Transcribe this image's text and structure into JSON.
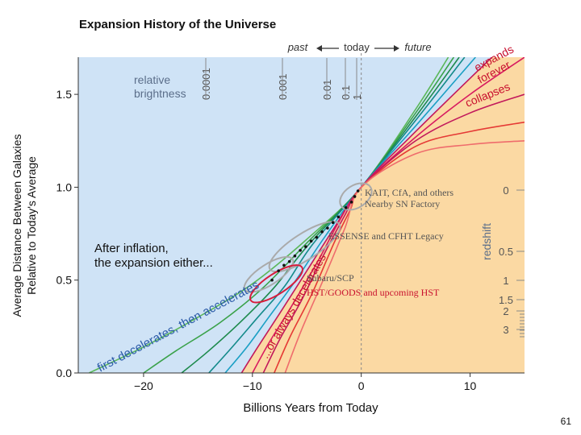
{
  "page": {
    "number": "61"
  },
  "chart_data": {
    "type": "line",
    "title": "Expansion History of the Universe",
    "xlabel": "Billions Years from Today",
    "ylabel_line1": "Average Distance Between Galaxies",
    "ylabel_line2": "Relative to Today's Average",
    "xlim": [
      -26,
      15
    ],
    "ylim": [
      0,
      1.7
    ],
    "x_ticks": [
      -20,
      -10,
      0,
      10
    ],
    "x_tick_labels": [
      "−20",
      "−10",
      "0",
      "10"
    ],
    "y_ticks": [
      0.0,
      0.5,
      1.0,
      1.5
    ],
    "y_tick_labels": [
      "0.0",
      "0.5",
      "1.0",
      "1.5"
    ],
    "colors": {
      "decel_region": "#cfe3f6",
      "accel_region": "#fbd9a3",
      "today_line": "#888888",
      "decel_text": "#2a5aa8",
      "accel_text": "#c8102e",
      "gray_text": "#555555"
    },
    "time_arrow": {
      "past": "past",
      "today": "today",
      "future": "future"
    },
    "brightness": {
      "label_line1": "relative",
      "label_line2": "brightness",
      "ticks": [
        "0.0001",
        "0.001",
        "0.01",
        "0.1",
        "1"
      ]
    },
    "redshift": {
      "label": "redshift",
      "ticks": [
        "0",
        "0.5",
        "1",
        "1.5",
        "2",
        "3"
      ]
    },
    "annotations": {
      "expands": "expands",
      "forever": "forever",
      "collapses": "collapses",
      "first_decelerates": "first decelerates, then accelerates",
      "always_decelerates": "...or always decelerates",
      "after_inflation_line1": "After inflation,",
      "after_inflation_line2": "the expansion either...",
      "kait": "KAIT, CfA, and others",
      "nearby": "Nearby SN Factory",
      "essence": "ESSENSE and CFHT Legacy",
      "subaru": "Subaru/SCP",
      "hst": "HST/GOODS and upcoming HST"
    },
    "series": [
      {
        "name": "accelerating model 1",
        "color": "#5bb85a",
        "values": [
          [
            -25.0,
            0
          ],
          [
            -20,
            0.14
          ],
          [
            -15,
            0.3
          ],
          [
            -10,
            0.48
          ],
          [
            -5,
            0.72
          ],
          [
            0,
            1.0
          ],
          [
            5,
            1.42
          ],
          [
            8,
            1.7
          ]
        ]
      },
      {
        "name": "accelerating model 2",
        "color": "#3aa24a",
        "values": [
          [
            -20.0,
            0
          ],
          [
            -17,
            0.12
          ],
          [
            -13,
            0.27
          ],
          [
            -9,
            0.46
          ],
          [
            -5,
            0.7
          ],
          [
            0,
            1.0
          ],
          [
            5,
            1.4
          ],
          [
            8.5,
            1.7
          ]
        ]
      },
      {
        "name": "accelerating model 3",
        "color": "#1d8a4c",
        "values": [
          [
            -16.5,
            0
          ],
          [
            -14,
            0.12
          ],
          [
            -11,
            0.28
          ],
          [
            -8,
            0.46
          ],
          [
            -5,
            0.68
          ],
          [
            0,
            1.0
          ],
          [
            5,
            1.38
          ],
          [
            9,
            1.7
          ]
        ]
      },
      {
        "name": "accelerating model 4",
        "color": "#138a8a",
        "values": [
          [
            -14.0,
            0
          ],
          [
            -12,
            0.13
          ],
          [
            -9.5,
            0.3
          ],
          [
            -7,
            0.47
          ],
          [
            -4.5,
            0.69
          ],
          [
            0,
            1.0
          ],
          [
            5,
            1.36
          ],
          [
            9.5,
            1.7
          ]
        ]
      },
      {
        "name": "accelerating model 5",
        "color": "#1a9fc4",
        "values": [
          [
            -12.5,
            0
          ],
          [
            -10.5,
            0.14
          ],
          [
            -8.5,
            0.3
          ],
          [
            -6,
            0.5
          ],
          [
            -3.5,
            0.72
          ],
          [
            0,
            1.0
          ],
          [
            5,
            1.33
          ],
          [
            10.5,
            1.7
          ]
        ]
      },
      {
        "name": "boundary model",
        "color": "#c2185b",
        "values": [
          [
            -11.0,
            0
          ],
          [
            -9.5,
            0.14
          ],
          [
            -7.5,
            0.32
          ],
          [
            -5,
            0.55
          ],
          [
            -2.5,
            0.78
          ],
          [
            0,
            1.0
          ],
          [
            5,
            1.3
          ],
          [
            12,
            1.7
          ]
        ]
      },
      {
        "name": "decelerating model 1",
        "color": "#d81b60",
        "values": [
          [
            -10.0,
            0
          ],
          [
            -8.5,
            0.16
          ],
          [
            -6.5,
            0.35
          ],
          [
            -4,
            0.6
          ],
          [
            -2,
            0.82
          ],
          [
            0,
            1.0
          ],
          [
            5,
            1.27
          ],
          [
            10,
            1.5
          ],
          [
            15,
            1.7
          ]
        ]
      },
      {
        "name": "decelerating model 2",
        "color": "#c2185b",
        "values": [
          [
            -9.0,
            0
          ],
          [
            -7.5,
            0.18
          ],
          [
            -5.5,
            0.39
          ],
          [
            -3.5,
            0.63
          ],
          [
            -1.5,
            0.85
          ],
          [
            0,
            1.0
          ],
          [
            5,
            1.25
          ],
          [
            10,
            1.4
          ],
          [
            15,
            1.5
          ]
        ]
      },
      {
        "name": "decelerating model 3",
        "color": "#e53935",
        "values": [
          [
            -8.0,
            0
          ],
          [
            -6.5,
            0.2
          ],
          [
            -4.5,
            0.43
          ],
          [
            -2.5,
            0.7
          ],
          [
            -1,
            0.88
          ],
          [
            0,
            1.0
          ],
          [
            5,
            1.22
          ],
          [
            10,
            1.3
          ],
          [
            15,
            1.35
          ]
        ]
      },
      {
        "name": "decelerating model 4",
        "color": "#ef6c6c",
        "values": [
          [
            -7.0,
            0
          ],
          [
            -5.5,
            0.23
          ],
          [
            -3.5,
            0.5
          ],
          [
            -1.5,
            0.78
          ],
          [
            0,
            1.0
          ],
          [
            5,
            1.18
          ],
          [
            10,
            1.23
          ],
          [
            15,
            1.25
          ]
        ]
      }
    ],
    "supernova_points": [
      [
        -8.2,
        0.5
      ],
      [
        -7.6,
        0.55
      ],
      [
        -7.1,
        0.58
      ],
      [
        -6.6,
        0.6
      ],
      [
        -6.1,
        0.63
      ],
      [
        -5.6,
        0.66
      ],
      [
        -5.1,
        0.68
      ],
      [
        -4.6,
        0.71
      ],
      [
        -4.1,
        0.73
      ],
      [
        -3.6,
        0.76
      ],
      [
        -3.1,
        0.78
      ],
      [
        -2.6,
        0.81
      ],
      [
        -2.1,
        0.84
      ],
      [
        -1.4,
        0.89
      ],
      [
        -0.9,
        0.92
      ],
      [
        -0.6,
        0.95
      ],
      [
        -0.3,
        0.98
      ]
    ],
    "survey_ellipses": [
      {
        "name": "kait-ellipse",
        "color": "#aaaaaa",
        "cx": -0.5,
        "cy": 0.95,
        "rx": 1.6,
        "ry": 0.06
      },
      {
        "name": "essence-ellipse",
        "color": "#aaaaaa",
        "cx": -5.2,
        "cy": 0.68,
        "rx": 3.8,
        "ry": 0.07
      },
      {
        "name": "subaru-ellipse",
        "color": "#aaaaaa",
        "cx": -8.5,
        "cy": 0.53,
        "rx": 2.6,
        "ry": 0.055
      },
      {
        "name": "hst-ellipse",
        "color": "#d81b3a",
        "cx": -7.8,
        "cy": 0.48,
        "rx": 2.8,
        "ry": 0.055
      }
    ]
  }
}
